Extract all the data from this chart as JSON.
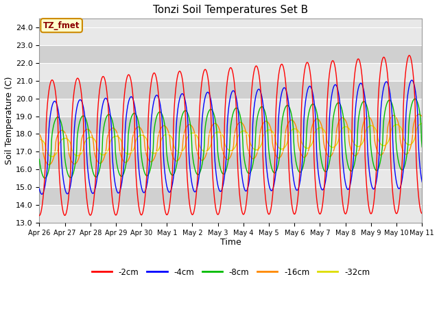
{
  "title": "Tonzi Soil Temperatures Set B",
  "xlabel": "Time",
  "ylabel": "Soil Temperature (C)",
  "ylim": [
    13.0,
    24.5
  ],
  "yticks": [
    13.0,
    14.0,
    15.0,
    16.0,
    17.0,
    18.0,
    19.0,
    20.0,
    21.0,
    22.0,
    23.0,
    24.0
  ],
  "colors": {
    "-2cm": "#ff0000",
    "-4cm": "#0000ff",
    "-8cm": "#00bb00",
    "-16cm": "#ff8800",
    "-32cm": "#dddd00"
  },
  "legend_labels": [
    "-2cm",
    "-4cm",
    "-8cm",
    "-16cm",
    "-32cm"
  ],
  "annotation_text": "TZ_fmet",
  "annotation_bg": "#ffffcc",
  "annotation_border": "#cc8800",
  "tick_labels": [
    "Apr 26",
    "Apr 27",
    "Apr 28",
    "Apr 29",
    "Apr 30",
    "May 1",
    "May 2",
    "May 3",
    "May 4",
    "May 5",
    "May 6",
    "May 7",
    "May 8",
    "May 9",
    "May 10",
    "May 11"
  ],
  "fig_bg": "#ffffff",
  "plot_bg_light": "#e8e8e8",
  "plot_bg_dark": "#d0d0d0",
  "grid_color": "#ffffff"
}
